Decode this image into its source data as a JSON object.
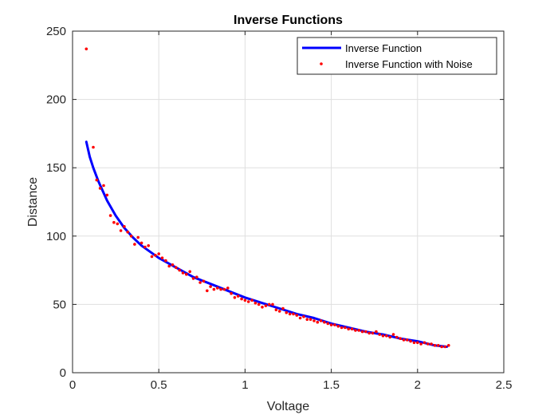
{
  "chart_data": {
    "type": "line",
    "title": "Inverse Functions",
    "xlabel": "Voltage",
    "ylabel": "Distance",
    "xlim": [
      0,
      2.5
    ],
    "ylim": [
      0,
      250
    ],
    "x_ticks": [
      "0",
      "0.5",
      "1",
      "1.5",
      "2",
      "2.5"
    ],
    "y_ticks": [
      "0",
      "50",
      "100",
      "150",
      "200",
      "250"
    ],
    "grid": true,
    "legend_position": "top-right",
    "series": [
      {
        "name": "Inverse Function",
        "style": "line",
        "color": "#0000ff",
        "x": [
          0.08,
          0.1,
          0.12,
          0.15,
          0.2,
          0.25,
          0.3,
          0.35,
          0.4,
          0.5,
          0.6,
          0.7,
          0.8,
          0.9,
          1.0,
          1.1,
          1.2,
          1.3,
          1.4,
          1.5,
          1.6,
          1.7,
          1.8,
          1.9,
          2.0,
          2.1,
          2.17
        ],
        "y": [
          169,
          158,
          150,
          140,
          126,
          115,
          106,
          99,
          93,
          84,
          77,
          70,
          65,
          60,
          55,
          51,
          47,
          43,
          40,
          36,
          33,
          30,
          28,
          25,
          23,
          20,
          19
        ]
      },
      {
        "name": "Inverse Function with Noise",
        "style": "points",
        "color": "#ff0000",
        "x": [
          0.08,
          0.12,
          0.14,
          0.16,
          0.18,
          0.2,
          0.22,
          0.24,
          0.26,
          0.28,
          0.3,
          0.32,
          0.34,
          0.36,
          0.38,
          0.4,
          0.42,
          0.44,
          0.46,
          0.48,
          0.5,
          0.52,
          0.54,
          0.56,
          0.58,
          0.6,
          0.62,
          0.64,
          0.66,
          0.68,
          0.7,
          0.72,
          0.74,
          0.76,
          0.78,
          0.8,
          0.82,
          0.84,
          0.86,
          0.88,
          0.9,
          0.92,
          0.94,
          0.96,
          0.98,
          1.0,
          1.02,
          1.04,
          1.06,
          1.08,
          1.1,
          1.12,
          1.14,
          1.16,
          1.18,
          1.2,
          1.22,
          1.24,
          1.26,
          1.28,
          1.3,
          1.32,
          1.34,
          1.36,
          1.38,
          1.4,
          1.42,
          1.44,
          1.46,
          1.48,
          1.5,
          1.52,
          1.54,
          1.56,
          1.58,
          1.6,
          1.62,
          1.64,
          1.66,
          1.68,
          1.7,
          1.72,
          1.74,
          1.76,
          1.78,
          1.8,
          1.82,
          1.84,
          1.86,
          1.88,
          1.9,
          1.92,
          1.94,
          1.96,
          1.98,
          2.0,
          2.02,
          2.04,
          2.06,
          2.08,
          2.1,
          2.12,
          2.14,
          2.16,
          2.18
        ],
        "y": [
          237,
          165,
          141,
          135,
          137,
          130,
          115,
          110,
          109,
          104,
          107,
          103,
          100,
          94,
          99,
          95,
          92,
          93,
          85,
          86,
          87,
          84,
          82,
          78,
          79,
          77,
          75,
          73,
          72,
          74,
          69,
          70,
          66,
          67,
          60,
          63,
          61,
          62,
          61,
          61,
          62,
          58,
          55,
          56,
          54,
          53,
          52,
          53,
          51,
          50,
          48,
          49,
          50,
          50,
          46,
          45,
          47,
          44,
          43,
          43,
          42,
          40,
          41,
          39,
          39,
          38,
          37,
          38,
          37,
          36,
          35,
          35,
          34,
          33,
          33,
          32,
          32,
          31,
          31,
          30,
          30,
          29,
          29,
          30,
          28,
          27,
          27,
          26,
          28,
          26,
          25,
          24,
          24,
          23,
          22,
          22,
          21,
          22,
          21,
          21,
          20,
          20,
          19,
          19,
          20
        ]
      }
    ]
  }
}
